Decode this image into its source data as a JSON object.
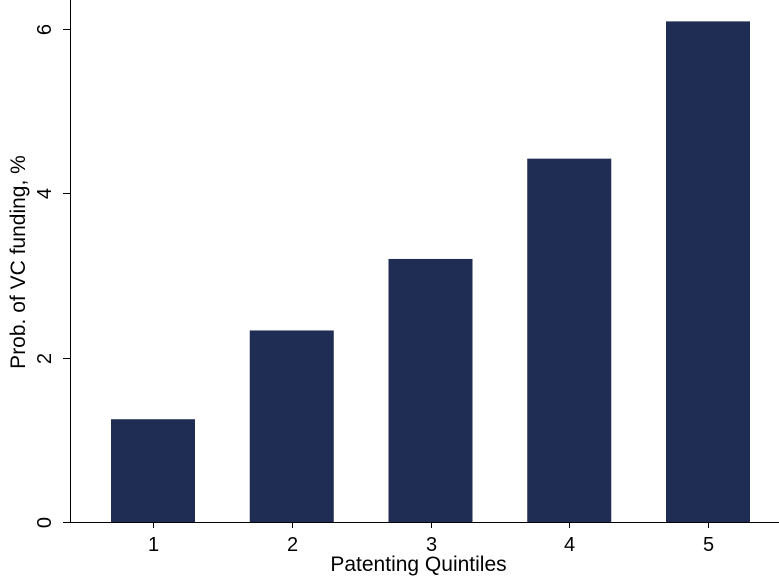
{
  "chart_data": {
    "type": "bar",
    "categories": [
      "1",
      "2",
      "3",
      "4",
      "5"
    ],
    "values": [
      1.25,
      2.33,
      3.2,
      4.42,
      6.09
    ],
    "title": "",
    "xlabel": "Patenting Quintiles",
    "ylabel": "Prob. of VC funding, %",
    "ylim": [
      0,
      6.35
    ],
    "yticks": [
      "0",
      "2",
      "4",
      "6"
    ],
    "grid": false,
    "legend": "none",
    "bar_color": "#1f2c53"
  }
}
